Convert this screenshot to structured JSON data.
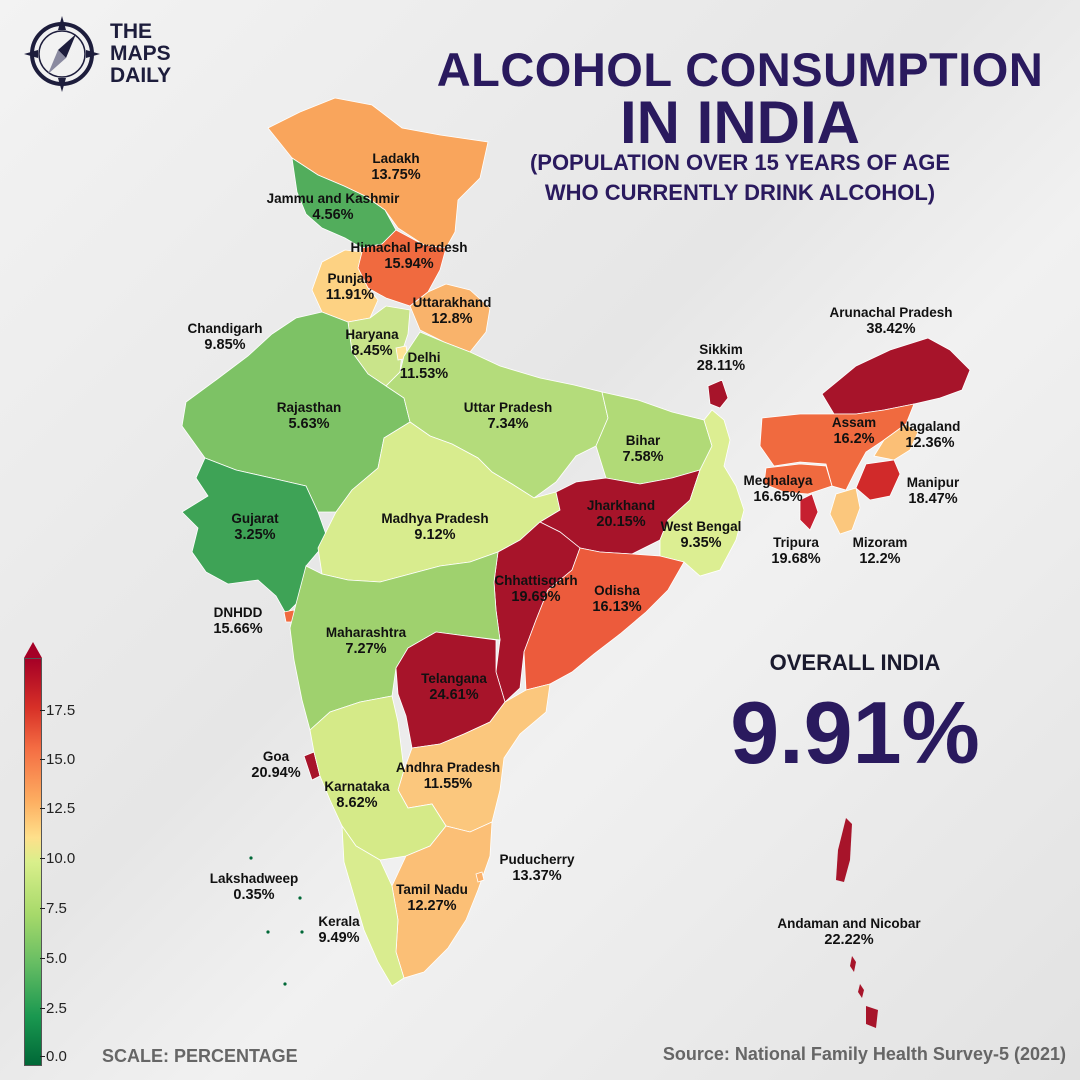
{
  "brand": {
    "line1": "THE",
    "line2": "MAPS",
    "line3": "DAILY"
  },
  "title": {
    "line1": "ALCOHOL CONSUMPTION",
    "line2": "IN INDIA",
    "subtitle_line1": "(POPULATION OVER 15 YEARS OF AGE",
    "subtitle_line2": "WHO CURRENTLY DRINK ALCOHOL)"
  },
  "overall": {
    "label": "OVERALL INDIA",
    "value": "9.91%"
  },
  "scale_label": "SCALE: PERCENTAGE",
  "source": "Source: National Family Health Survey-5 (2021)",
  "legend": {
    "ticks": [
      "0.0",
      "2.5",
      "5.0",
      "7.5",
      "10.0",
      "12.5",
      "15.0",
      "17.5"
    ],
    "colors": [
      "#006837",
      "#1a9850",
      "#66bd63",
      "#a6d96a",
      "#d9ef8b",
      "#fee08b",
      "#fdae61",
      "#f46d43",
      "#d73027",
      "#a50026"
    ]
  },
  "regions": [
    {
      "name": "Ladakh",
      "value": "13.75%"
    },
    {
      "name": "Jammu and Kashmir",
      "value": "4.56%"
    },
    {
      "name": "Himachal Pradesh",
      "value": "15.94%"
    },
    {
      "name": "Punjab",
      "value": "11.91%"
    },
    {
      "name": "Uttarakhand",
      "value": "12.8%"
    },
    {
      "name": "Chandigarh",
      "value": "9.85%"
    },
    {
      "name": "Haryana",
      "value": "8.45%"
    },
    {
      "name": "Delhi",
      "value": "11.53%"
    },
    {
      "name": "Rajasthan",
      "value": "5.63%"
    },
    {
      "name": "Uttar Pradesh",
      "value": "7.34%"
    },
    {
      "name": "Bihar",
      "value": "7.58%"
    },
    {
      "name": "Sikkim",
      "value": "28.11%"
    },
    {
      "name": "Arunachal Pradesh",
      "value": "38.42%"
    },
    {
      "name": "Assam",
      "value": "16.2%"
    },
    {
      "name": "Nagaland",
      "value": "12.36%"
    },
    {
      "name": "Meghalaya",
      "value": "16.65%"
    },
    {
      "name": "Manipur",
      "value": "18.47%"
    },
    {
      "name": "Tripura",
      "value": "19.68%"
    },
    {
      "name": "Mizoram",
      "value": "12.2%"
    },
    {
      "name": "Gujarat",
      "value": "3.25%"
    },
    {
      "name": "Madhya Pradesh",
      "value": "9.12%"
    },
    {
      "name": "Jharkhand",
      "value": "20.15%"
    },
    {
      "name": "West Bengal",
      "value": "9.35%"
    },
    {
      "name": "Chhattisgarh",
      "value": "19.69%"
    },
    {
      "name": "Odisha",
      "value": "16.13%"
    },
    {
      "name": "DNHDD",
      "value": "15.66%"
    },
    {
      "name": "Maharashtra",
      "value": "7.27%"
    },
    {
      "name": "Telangana",
      "value": "24.61%"
    },
    {
      "name": "Goa",
      "value": "20.94%"
    },
    {
      "name": "Karnataka",
      "value": "8.62%"
    },
    {
      "name": "Andhra Pradesh",
      "value": "11.55%"
    },
    {
      "name": "Puducherry",
      "value": "13.37%"
    },
    {
      "name": "Lakshadweep",
      "value": "0.35%"
    },
    {
      "name": "Tamil Nadu",
      "value": "12.27%"
    },
    {
      "name": "Kerala",
      "value": "9.49%"
    },
    {
      "name": "Andaman and Nicobar",
      "value": "22.22%"
    }
  ]
}
